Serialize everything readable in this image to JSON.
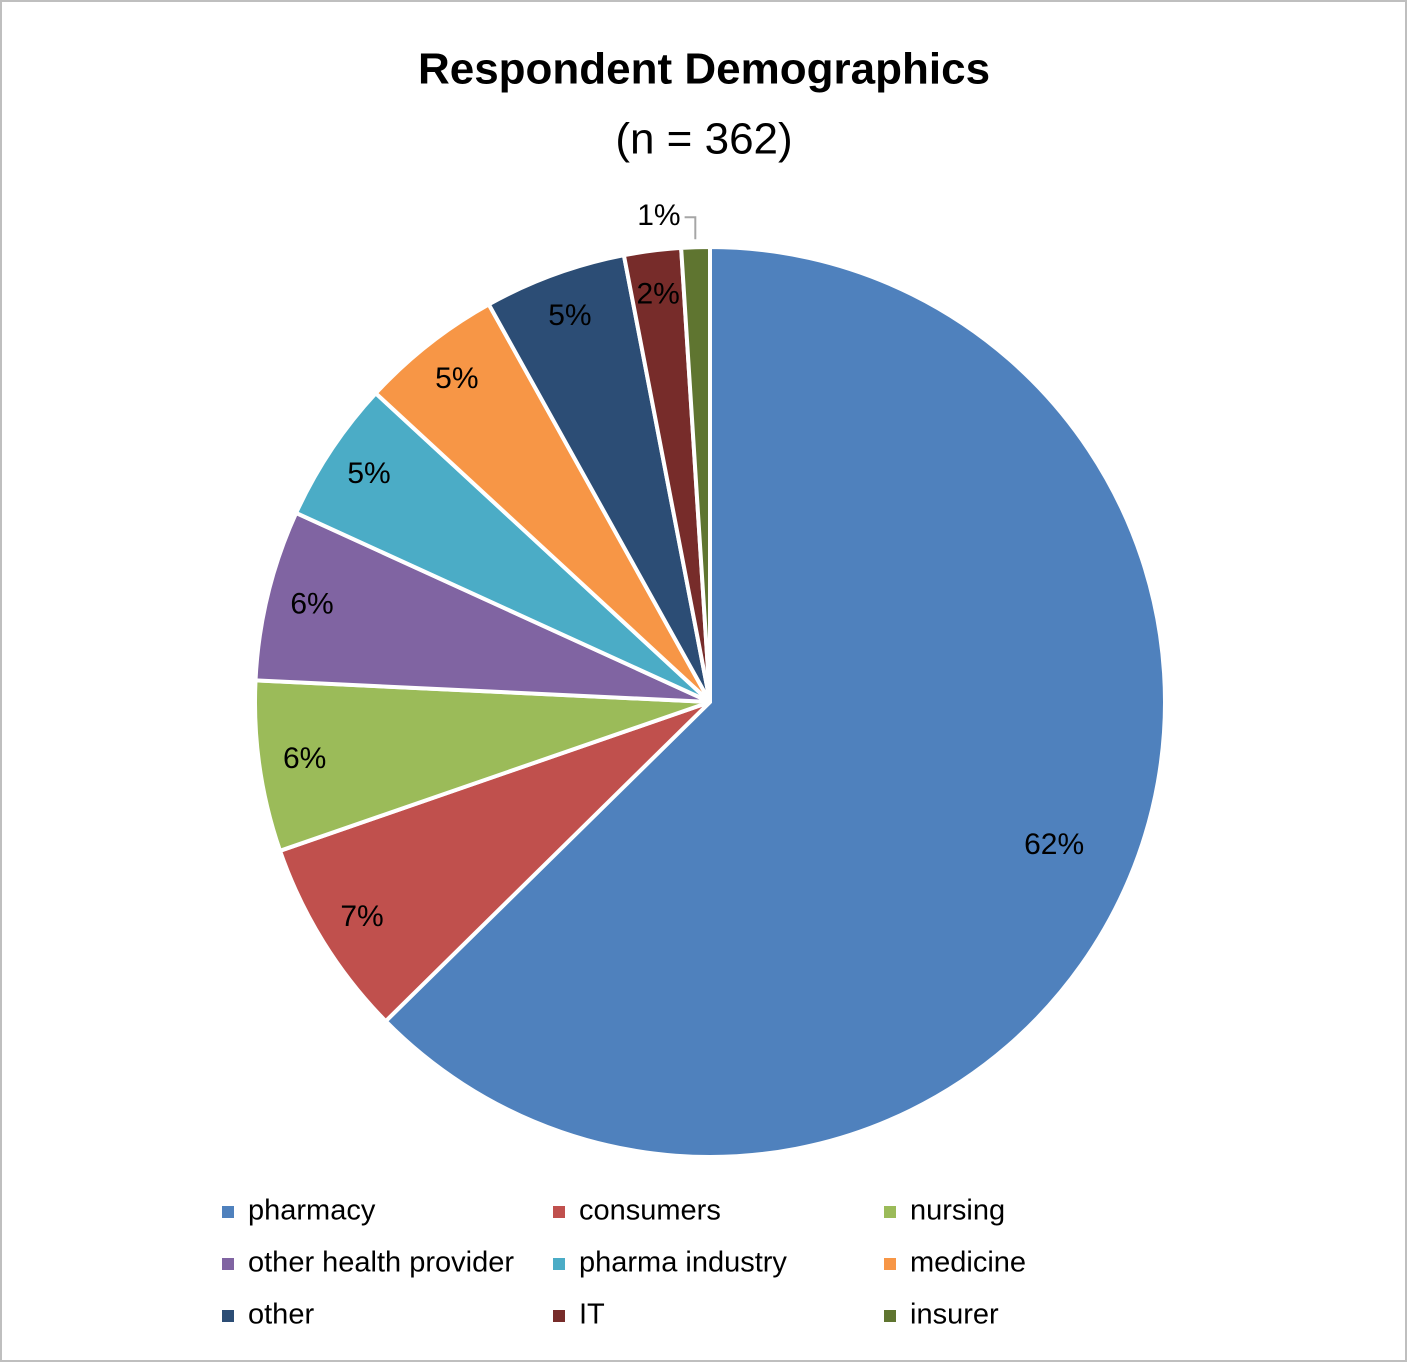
{
  "chart_data": {
    "type": "pie",
    "title": "Respondent Demographics",
    "subtitle": "(n = 362)",
    "categories": [
      "pharmacy",
      "consumers",
      "nursing",
      "other health provider",
      "pharma industry",
      "medicine",
      "other",
      "IT",
      "insurer"
    ],
    "values": [
      62,
      7,
      6,
      6,
      5,
      5,
      5,
      2,
      1
    ],
    "value_labels": [
      "62%",
      "7%",
      "6%",
      "6%",
      "5%",
      "5%",
      "5%",
      "2%",
      "1%"
    ],
    "colors": [
      "#4f81bd",
      "#c0504d",
      "#9bbb59",
      "#8064a2",
      "#4bacc6",
      "#f79646",
      "#2c4d75",
      "#772c2a",
      "#5f7530"
    ],
    "legend": "bottom"
  }
}
